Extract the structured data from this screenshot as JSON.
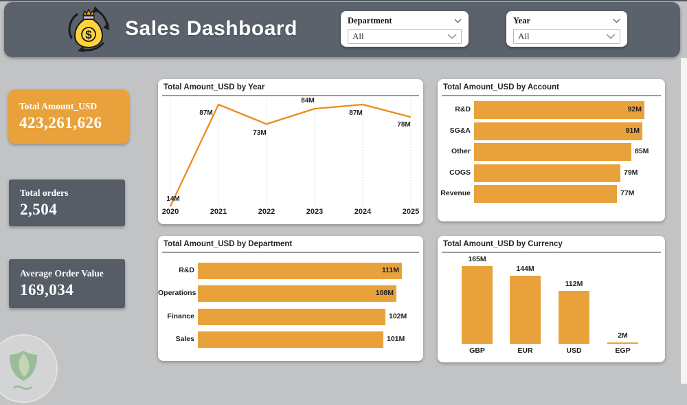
{
  "header": {
    "title": "Sales Dashboard",
    "icon": "money-bag-cycle-icon"
  },
  "slicers": [
    {
      "label": "Department",
      "value": "All"
    },
    {
      "label": "Year",
      "value": "All"
    }
  ],
  "kpis": [
    {
      "label": "Total Amount_USD",
      "value": "423,261,626"
    },
    {
      "label": "Total orders",
      "value": "2,504"
    },
    {
      "label": "Average Order Value",
      "value": "169,034"
    }
  ],
  "chart_data": [
    {
      "type": "line",
      "title": "Total Amount_USD by Year",
      "x": [
        "2020",
        "2021",
        "2022",
        "2023",
        "2024",
        "2025"
      ],
      "values": [
        14,
        87,
        73,
        84,
        87,
        78
      ],
      "labels": [
        "14M",
        "87M",
        "73M",
        "84M",
        "87M",
        "78M"
      ],
      "unit": "millions USD",
      "ylim": [
        0,
        90
      ],
      "grid": "vertical-dotted",
      "legend": "none"
    },
    {
      "type": "bar",
      "orientation": "horizontal",
      "title": "Total Amount_USD by Account",
      "categories": [
        "R&D",
        "SG&A",
        "Other",
        "COGS",
        "Revenue"
      ],
      "values": [
        92,
        91,
        85,
        79,
        77
      ],
      "labels": [
        "92M",
        "91M",
        "85M",
        "79M",
        "77M"
      ],
      "unit": "millions USD"
    },
    {
      "type": "bar",
      "orientation": "horizontal",
      "title": "Total Amount_USD by Department",
      "categories": [
        "R&D",
        "Operations",
        "Finance",
        "Sales"
      ],
      "values": [
        111,
        108,
        102,
        101
      ],
      "labels": [
        "111M",
        "108M",
        "102M",
        "101M"
      ],
      "unit": "millions USD"
    },
    {
      "type": "bar",
      "orientation": "vertical",
      "title": "Total Amount_USD by Currency",
      "categories": [
        "GBP",
        "EUR",
        "USD",
        "EGP"
      ],
      "values": [
        165,
        144,
        112,
        2
      ],
      "labels": [
        "165M",
        "144M",
        "112M",
        "2M"
      ],
      "unit": "millions USD"
    }
  ],
  "colors": {
    "accent_orange": "#E9A23B",
    "line_orange": "#ED8A1C",
    "header_bg": "#5B626C",
    "kpi_gray": "#575D67",
    "page_bg": "#C2C3C5"
  },
  "watermark": {
    "icon": "leaf-shield-watermark"
  }
}
